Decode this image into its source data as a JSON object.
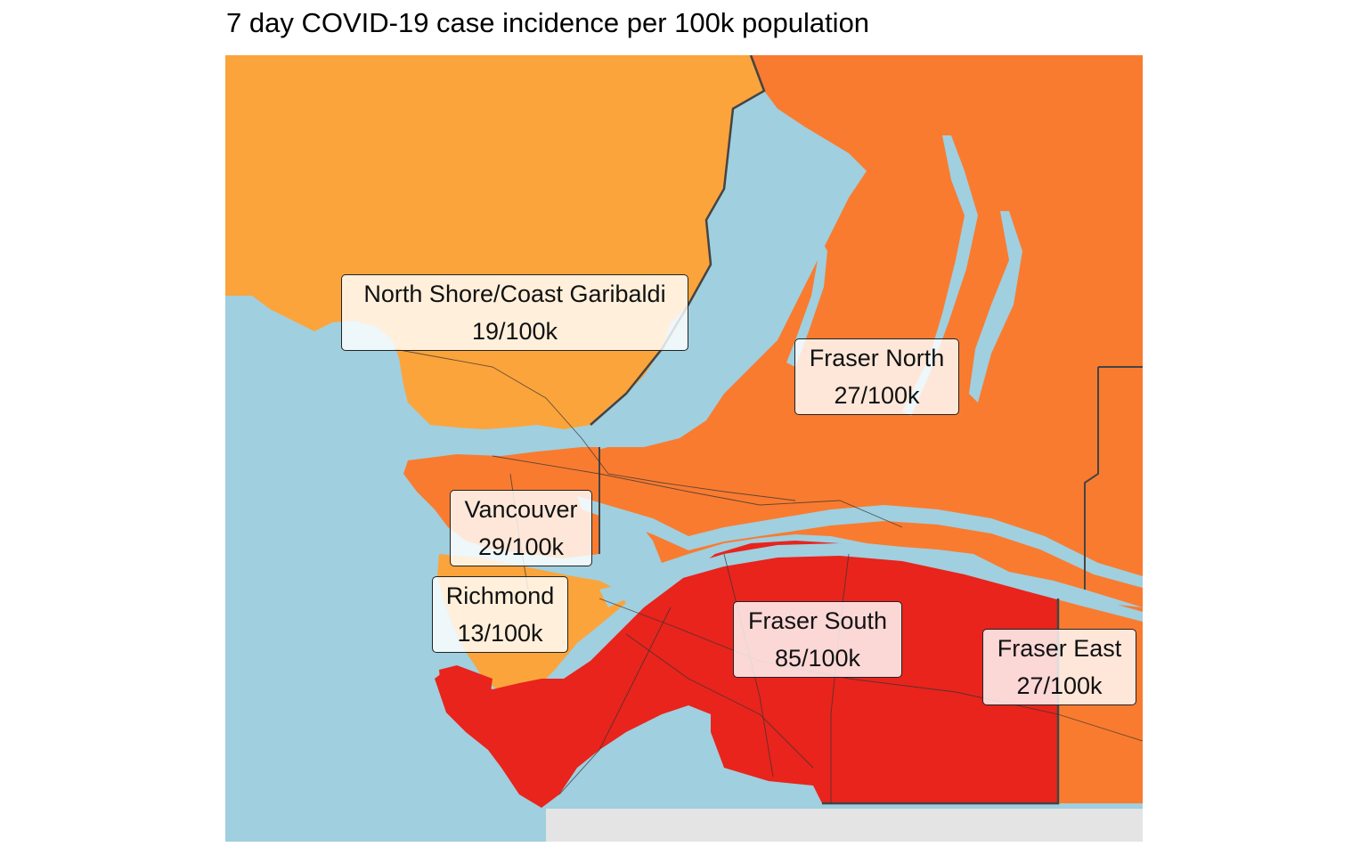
{
  "title": "7 day COVID-19 case incidence per 100k population",
  "colors": {
    "water": "#a0cfdf",
    "us_land": "#e4e4e4",
    "tier_low": "#fba43b",
    "tier_mid": "#f97b30",
    "tier_high": "#e8241c",
    "border": "#444444"
  },
  "regions": [
    {
      "id": "north-shore",
      "name": "North Shore/Coast Garibaldi",
      "rate": "19/100k"
    },
    {
      "id": "fraser-north",
      "name": "Fraser North",
      "rate": "27/100k"
    },
    {
      "id": "vancouver",
      "name": "Vancouver",
      "rate": "29/100k"
    },
    {
      "id": "richmond",
      "name": "Richmond",
      "rate": "13/100k"
    },
    {
      "id": "fraser-south",
      "name": "Fraser South",
      "rate": "85/100k"
    },
    {
      "id": "fraser-east",
      "name": "Fraser East",
      "rate": "27/100k"
    }
  ]
}
